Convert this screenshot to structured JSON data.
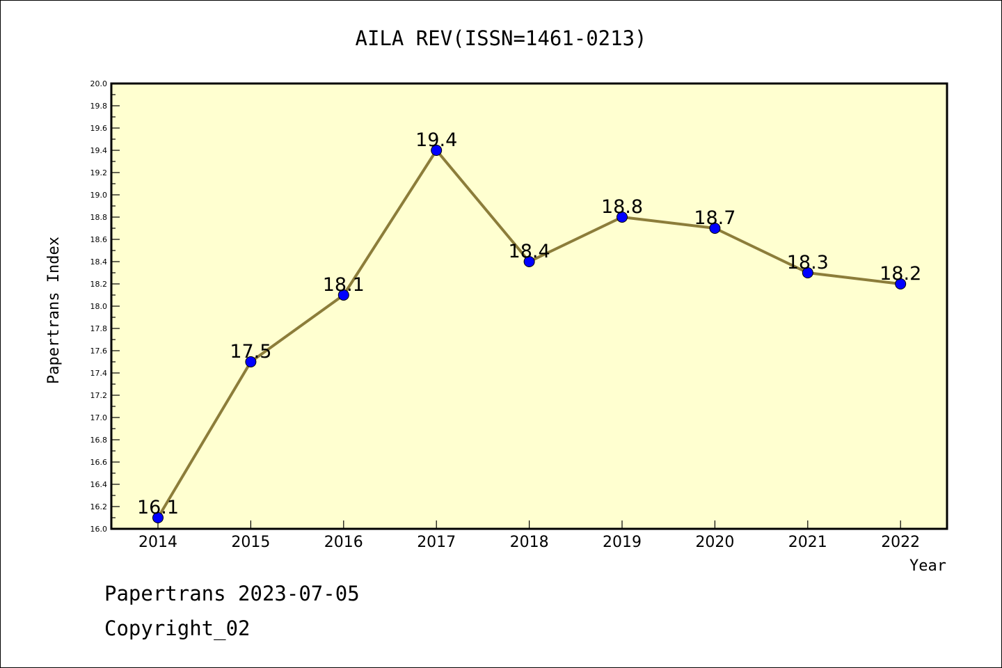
{
  "chart_data": {
    "type": "line",
    "title": "AILA REV(ISSN=1461-0213)",
    "xlabel": "Year",
    "ylabel": "Papertrans Index",
    "x": [
      "2014",
      "2015",
      "2016",
      "2017",
      "2018",
      "2019",
      "2020",
      "2021",
      "2022"
    ],
    "values": [
      16.1,
      17.5,
      18.1,
      19.4,
      18.4,
      18.8,
      18.7,
      18.3,
      18.2
    ],
    "data_labels": [
      "16.1",
      "17.5",
      "18.1",
      "19.4",
      "18.4",
      "18.8",
      "18.7",
      "18.3",
      "18.2"
    ],
    "ylim": [
      16.0,
      20.0
    ],
    "y_ticks": [
      "16.0",
      "16.2",
      "16.4",
      "16.6",
      "16.8",
      "17.0",
      "17.2",
      "17.4",
      "17.6",
      "17.8",
      "18.0",
      "18.2",
      "18.4",
      "18.6",
      "18.8",
      "19.0",
      "19.2",
      "19.4",
      "19.6",
      "19.8",
      "20.0"
    ],
    "grid": false,
    "colors": {
      "plot_background": "#ffffd0",
      "line": "#8c7d3a",
      "marker": "#0000ff"
    }
  },
  "footer": {
    "line1": "Papertrans 2023-07-05",
    "line2": "Copyright_02"
  }
}
